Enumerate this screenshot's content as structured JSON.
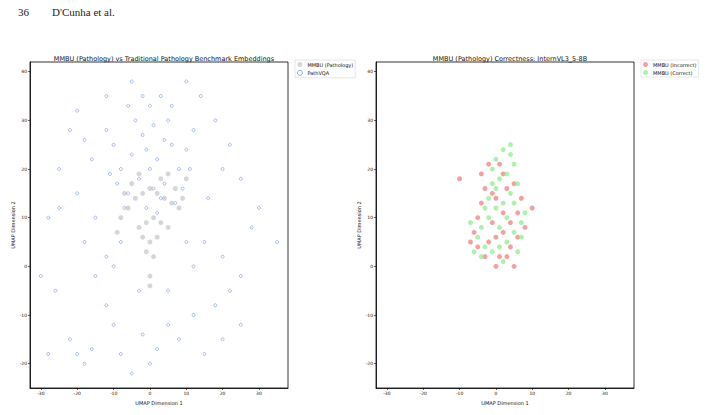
{
  "header": {
    "page_number": "36",
    "running_head": "D'Cunha et al."
  },
  "chart_data": [
    {
      "type": "scatter",
      "title": "MMBU (Pathology) vs Traditional Pathology Benchmark Embeddings",
      "x_label": "UMAP Dimension 1",
      "y_label": "UMAP Dimension 2",
      "xlim": [
        -33,
        38
      ],
      "xticks": [
        -30,
        -20,
        -10,
        0,
        10,
        20,
        30
      ],
      "ylim": [
        -25,
        42
      ],
      "yticks": [
        -20,
        -10,
        0,
        10,
        20,
        30,
        40
      ],
      "grid": false,
      "legend": "outside right",
      "series": [
        {
          "name": "MMBU (Pathology)",
          "color": "#c8c8c8",
          "marker": "circle",
          "values": [
            [
              -8,
              10
            ],
            [
              -6,
              12
            ],
            [
              -4,
              14
            ],
            [
              -2,
              15
            ],
            [
              0,
              16
            ],
            [
              2,
              15
            ],
            [
              4,
              14
            ],
            [
              6,
              13
            ],
            [
              8,
              12
            ],
            [
              -7,
              15
            ],
            [
              -5,
              17
            ],
            [
              7,
              16
            ],
            [
              9,
              14
            ],
            [
              -3,
              8
            ],
            [
              -1,
              9
            ],
            [
              1,
              10
            ],
            [
              3,
              9
            ],
            [
              5,
              8
            ],
            [
              0,
              5
            ],
            [
              -1,
              3
            ],
            [
              1,
              2
            ],
            [
              0,
              -2
            ],
            [
              0,
              -4
            ],
            [
              2,
              6
            ],
            [
              -2,
              6
            ],
            [
              10,
              18
            ],
            [
              -9,
              7
            ],
            [
              3,
              18
            ],
            [
              -3,
              19
            ],
            [
              5,
              19
            ]
          ]
        },
        {
          "name": "PathVQA",
          "color": "#4a78d8",
          "marker": "circle-open",
          "values": [
            [
              0,
              20
            ],
            [
              2,
              22
            ],
            [
              -3,
              18
            ],
            [
              4,
              17
            ],
            [
              -5,
              23
            ],
            [
              6,
              25
            ],
            [
              -2,
              27
            ],
            [
              1,
              29
            ],
            [
              3,
              14
            ],
            [
              -6,
              15
            ],
            [
              8,
              20
            ],
            [
              -8,
              20
            ],
            [
              5,
              30
            ],
            [
              -4,
              30
            ],
            [
              0,
              33
            ],
            [
              7,
              13
            ],
            [
              -7,
              12
            ],
            [
              10,
              24
            ],
            [
              -10,
              25
            ],
            [
              9,
              16
            ],
            [
              -9,
              17
            ],
            [
              2,
              11
            ],
            [
              -1,
              12
            ],
            [
              3,
              35
            ],
            [
              -2,
              35
            ],
            [
              11,
              20
            ],
            [
              -11,
              19
            ],
            [
              6,
              33
            ],
            [
              -6,
              33
            ],
            [
              4,
              26
            ],
            [
              -1,
              24
            ],
            [
              1,
              16
            ],
            [
              12,
              28
            ],
            [
              -12,
              28
            ],
            [
              -20,
              32
            ],
            [
              -22,
              28
            ],
            [
              -18,
              26
            ],
            [
              -25,
              20
            ],
            [
              -28,
              10
            ],
            [
              -30,
              -2
            ],
            [
              -26,
              -5
            ],
            [
              -18,
              -20
            ],
            [
              -20,
              -18
            ],
            [
              -16,
              -17
            ],
            [
              -22,
              -15
            ],
            [
              -10,
              -12
            ],
            [
              -12,
              -8
            ],
            [
              -8,
              -18
            ],
            [
              -5,
              -22
            ],
            [
              -2,
              -14
            ],
            [
              0,
              -20
            ],
            [
              2,
              -17
            ],
            [
              5,
              -12
            ],
            [
              8,
              -15
            ],
            [
              12,
              -10
            ],
            [
              15,
              -18
            ],
            [
              18,
              -8
            ],
            [
              22,
              -5
            ],
            [
              25,
              -2
            ],
            [
              20,
              -15
            ],
            [
              28,
              8
            ],
            [
              30,
              12
            ],
            [
              35,
              5
            ],
            [
              25,
              18
            ],
            [
              22,
              25
            ],
            [
              18,
              30
            ],
            [
              14,
              35
            ],
            [
              10,
              38
            ],
            [
              -5,
              38
            ],
            [
              -12,
              35
            ],
            [
              -15,
              10
            ],
            [
              -18,
              5
            ],
            [
              -12,
              2
            ],
            [
              -20,
              15
            ],
            [
              -25,
              12
            ],
            [
              -8,
              5
            ],
            [
              10,
              5
            ],
            [
              15,
              5
            ],
            [
              20,
              2
            ],
            [
              12,
              0
            ],
            [
              -15,
              -2
            ],
            [
              -3,
              -5
            ],
            [
              5,
              -5
            ],
            [
              25,
              -12
            ],
            [
              -28,
              -18
            ],
            [
              -10,
              0
            ],
            [
              20,
              20
            ],
            [
              -16,
              22
            ],
            [
              16,
              14
            ]
          ]
        }
      ]
    },
    {
      "type": "scatter",
      "title": "MMBU (Pathology) Correctness: InternVL3_5-8B",
      "x_label": "UMAP Dimension 1",
      "y_label": "UMAP Dimension 2",
      "xlim": [
        -33,
        38
      ],
      "xticks": [
        -30,
        -20,
        -10,
        0,
        10,
        20,
        30
      ],
      "ylim": [
        -25,
        42
      ],
      "yticks": [
        -20,
        -10,
        0,
        10,
        20,
        30,
        40
      ],
      "grid": false,
      "legend": "outside right",
      "series": [
        {
          "name": "MMBU (Incorrect)",
          "color": "#f08080",
          "marker": "circle",
          "values": [
            [
              -10,
              18
            ],
            [
              -2,
              21
            ],
            [
              1,
              21
            ],
            [
              3,
              16
            ],
            [
              -1,
              15
            ],
            [
              -3,
              16
            ],
            [
              -4,
              13
            ],
            [
              -5,
              10
            ],
            [
              -6,
              7
            ],
            [
              -2,
              5
            ],
            [
              0,
              6
            ],
            [
              2,
              7
            ],
            [
              4,
              9
            ],
            [
              6,
              11
            ],
            [
              7,
              14
            ],
            [
              5,
              17
            ],
            [
              -3,
              2
            ],
            [
              1,
              2
            ],
            [
              4,
              4
            ],
            [
              6,
              6
            ],
            [
              -5,
              4
            ],
            [
              0,
              14
            ],
            [
              2,
              11
            ],
            [
              -1,
              9
            ],
            [
              8,
              8
            ],
            [
              -4,
              19
            ],
            [
              3,
              2
            ],
            [
              0,
              0
            ],
            [
              5,
              0
            ],
            [
              10,
              12
            ],
            [
              -7,
              5
            ],
            [
              2,
              19
            ]
          ]
        },
        {
          "name": "MMBU (Correct)",
          "color": "#90ee90",
          "marker": "circle",
          "values": [
            [
              0,
              22
            ],
            [
              2,
              24
            ],
            [
              4,
              23
            ],
            [
              -1,
              20
            ],
            [
              1,
              18
            ],
            [
              3,
              19
            ],
            [
              5,
              21
            ],
            [
              6,
              17
            ],
            [
              4,
              15
            ],
            [
              2,
              13
            ],
            [
              0,
              12
            ],
            [
              -2,
              10
            ],
            [
              -4,
              8
            ],
            [
              -5,
              6
            ],
            [
              -3,
              4
            ],
            [
              -1,
              3
            ],
            [
              1,
              4
            ],
            [
              3,
              5
            ],
            [
              5,
              7
            ],
            [
              7,
              9
            ],
            [
              8,
              11
            ],
            [
              -6,
              3
            ],
            [
              -4,
              2
            ],
            [
              2,
              1
            ],
            [
              6,
              3
            ],
            [
              0,
              16
            ],
            [
              -2,
              14
            ],
            [
              3,
              10
            ],
            [
              -7,
              9
            ],
            [
              5,
              13
            ],
            [
              1,
              8
            ],
            [
              4,
              25
            ],
            [
              -1,
              17
            ],
            [
              7,
              6
            ],
            [
              -3,
              12
            ]
          ]
        }
      ]
    }
  ]
}
